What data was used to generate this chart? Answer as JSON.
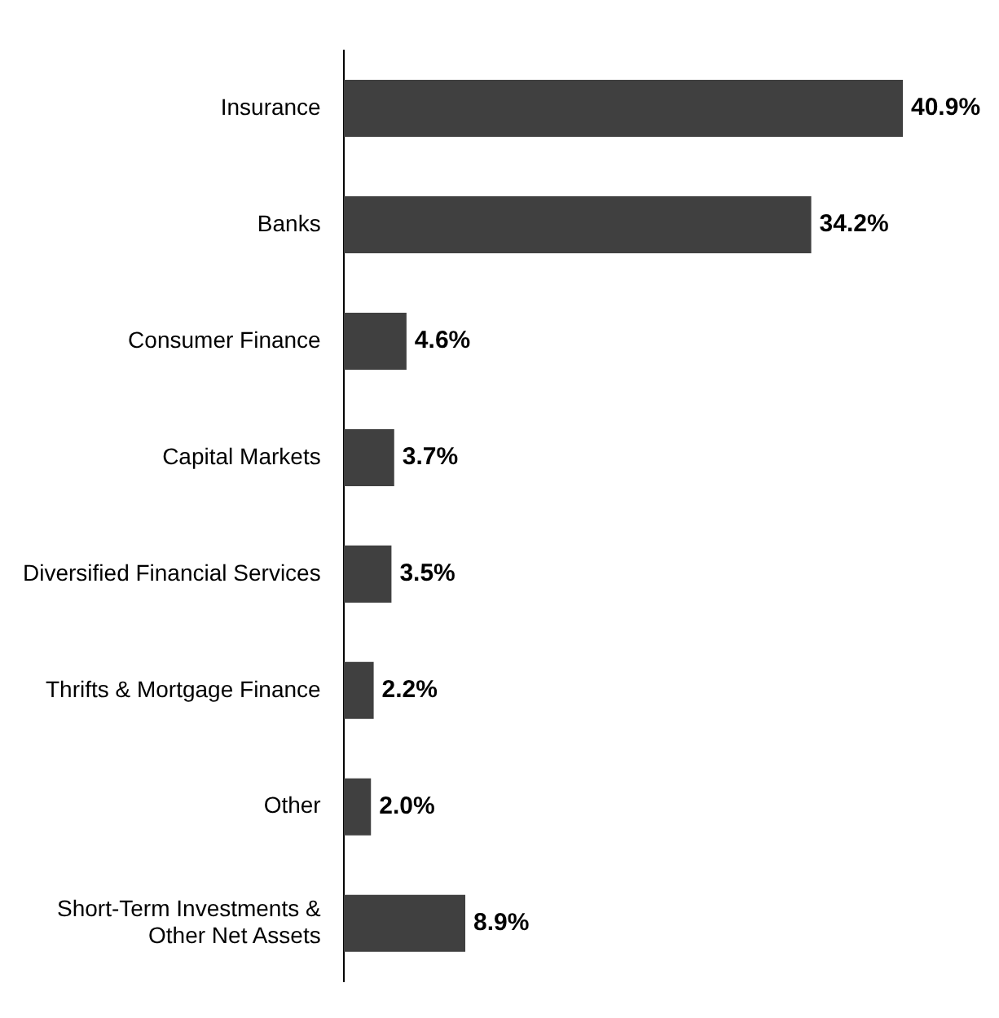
{
  "chart_data": {
    "type": "bar",
    "orientation": "horizontal",
    "categories": [
      "Insurance",
      "Banks",
      "Consumer Finance",
      "Capital Markets",
      "Diversified Financial Services",
      "Thrifts & Mortgage Finance",
      "Other",
      "Short-Term Investments & Other Net Assets"
    ],
    "values": [
      40.9,
      34.2,
      4.6,
      3.7,
      3.5,
      2.2,
      2.0,
      8.9
    ],
    "value_labels": [
      "40.9%",
      "34.2%",
      "4.6%",
      "3.7%",
      "3.5%",
      "2.2%",
      "2.0%",
      "8.9%"
    ],
    "color": "#404040",
    "grid": false,
    "legend": false
  }
}
